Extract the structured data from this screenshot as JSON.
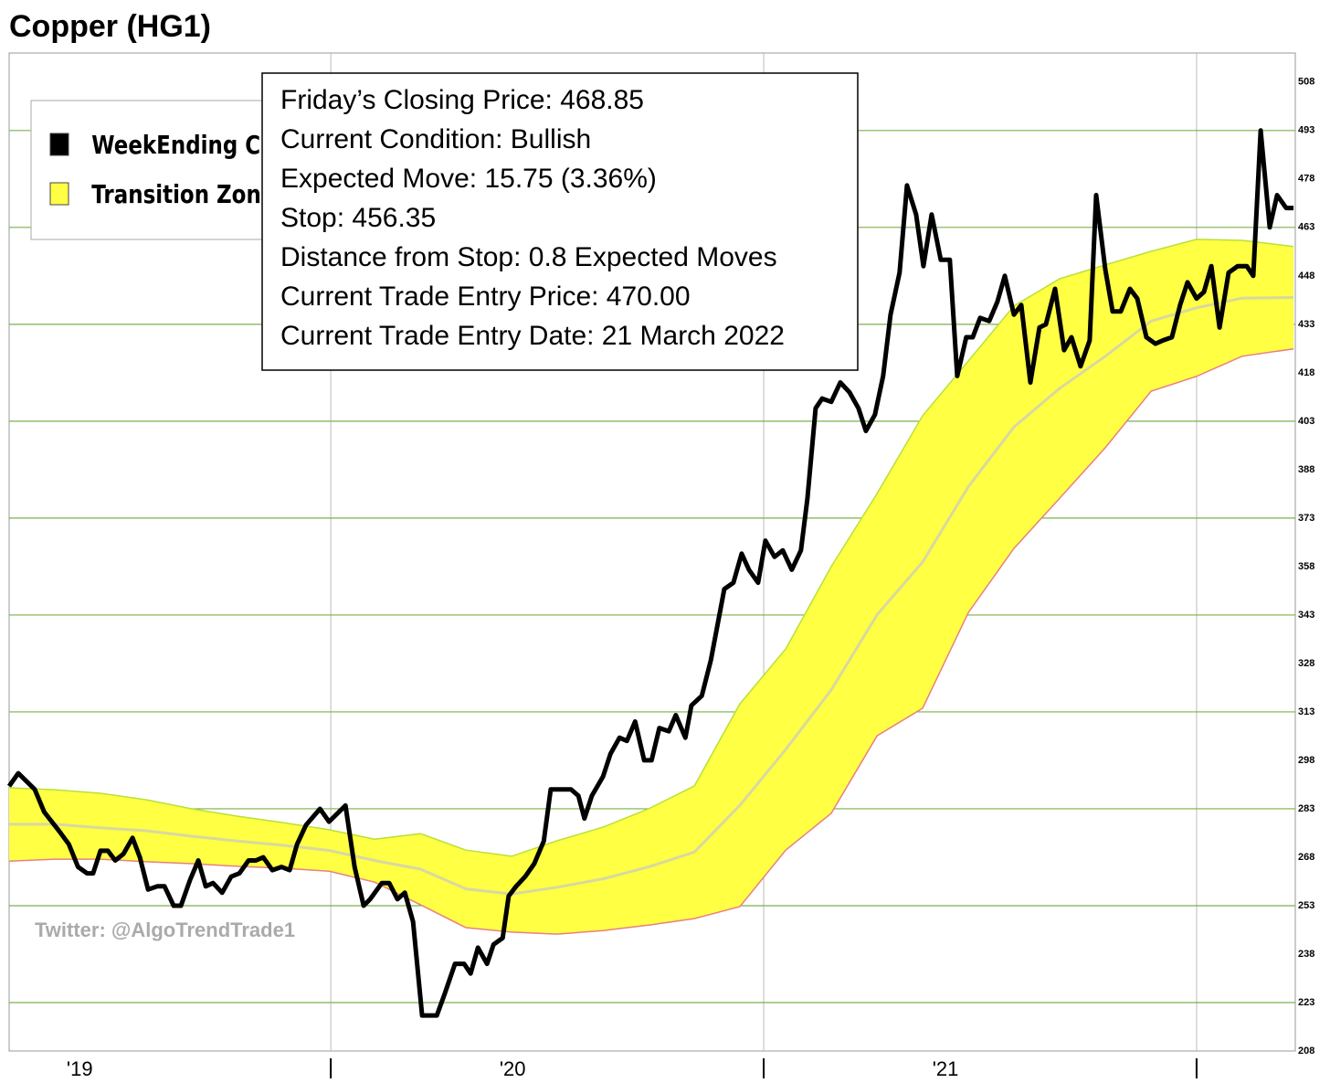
{
  "chart_data": {
    "type": "line",
    "title": "Copper (HG1)",
    "watermark": "Twitter: @AlgoTrendTrade1",
    "info": [
      "Friday’s Closing Price: 468.85",
      "Current Condition: Bullish",
      "Expected Move: 15.75 (3.36%)",
      "Stop: 456.35",
      "Distance from Stop: 0.8 Expected Moves",
      "Current Trade Entry Price: 470.00",
      "Current Trade Entry Date: 21 March 2022"
    ],
    "xlim": [
      2019.257,
      2022.228
    ],
    "xticks": [
      2020,
      2021,
      2022
    ],
    "xlabels": [
      {
        "value": 2019,
        "label": "'19"
      },
      {
        "value": 2020,
        "label": "'20"
      },
      {
        "value": 2021,
        "label": "'21"
      }
    ],
    "ylim": [
      208,
      517
    ],
    "yticks": [
      208,
      223,
      238,
      253,
      268,
      283,
      298,
      313,
      328,
      343,
      358,
      373,
      388,
      403,
      418,
      433,
      448,
      463,
      478,
      493,
      508
    ],
    "grid": true,
    "legend": "upper left",
    "x": [
      2019.257,
      2019.278,
      2019.316,
      2019.338,
      2019.373,
      2019.395,
      2019.416,
      2019.437,
      2019.451,
      2019.468,
      2019.485,
      2019.502,
      2019.521,
      2019.542,
      2019.559,
      2019.578,
      2019.599,
      2019.616,
      2019.637,
      2019.654,
      2019.675,
      2019.694,
      2019.711,
      2019.728,
      2019.749,
      2019.77,
      2019.789,
      2019.81,
      2019.827,
      2019.844,
      2019.865,
      2019.886,
      2019.905,
      2019.922,
      2019.943,
      2019.975,
      2019.996,
      2020.034,
      2020.055,
      2020.076,
      2020.091,
      2020.118,
      2020.135,
      2020.154,
      2020.171,
      2020.19,
      2020.211,
      2020.228,
      2020.245,
      2020.264,
      2020.287,
      2020.308,
      2020.323,
      2020.34,
      2020.361,
      2020.376,
      2020.397,
      2020.411,
      2020.428,
      2020.449,
      2020.47,
      2020.492,
      2020.508,
      2020.534,
      2020.555,
      2020.572,
      2020.586,
      2020.603,
      2020.629,
      2020.646,
      2020.667,
      2020.684,
      2020.703,
      2020.724,
      2020.741,
      2020.759,
      2020.781,
      2020.797,
      2020.819,
      2020.833,
      2020.857,
      2020.878,
      2020.909,
      2020.93,
      2020.949,
      2020.966,
      2020.987,
      2021.004,
      2021.025,
      2021.044,
      2021.065,
      2021.086,
      2021.101,
      2021.12,
      2021.135,
      2021.156,
      2021.177,
      2021.198,
      2021.219,
      2021.236,
      2021.257,
      2021.276,
      2021.293,
      2021.314,
      2021.331,
      2021.352,
      2021.369,
      2021.388,
      2021.409,
      2021.43,
      2021.447,
      2021.468,
      2021.483,
      2021.5,
      2021.521,
      2021.54,
      2021.557,
      2021.578,
      2021.595,
      2021.616,
      2021.637,
      2021.652,
      2021.673,
      2021.694,
      2021.711,
      2021.732,
      2021.753,
      2021.768,
      2021.789,
      2021.806,
      2021.825,
      2021.846,
      2021.863,
      2021.884,
      2021.905,
      2021.922,
      2021.943,
      2021.962,
      2021.979,
      2022.0,
      2022.017,
      2022.034,
      2022.053,
      2022.074,
      2022.095,
      2022.116,
      2022.131,
      2022.148,
      2022.169,
      2022.186,
      2022.207,
      2022.224
    ],
    "series": [
      {
        "name": "WeekEnding Close",
        "color": "#000000",
        "values": [
          290,
          294,
          289,
          282,
          276,
          272,
          265,
          263,
          263,
          270,
          270,
          267,
          269,
          274,
          268,
          258,
          259,
          259,
          253,
          253,
          261,
          267,
          259,
          260,
          257,
          262,
          263,
          267,
          267,
          268,
          264,
          265,
          264,
          272,
          278,
          283,
          279,
          284,
          265,
          253,
          255,
          260,
          260,
          255,
          257,
          248,
          219,
          219,
          219,
          226,
          235,
          235,
          232,
          240,
          235,
          241,
          243,
          256,
          259,
          262,
          266,
          273,
          289,
          289,
          289,
          287,
          280,
          287,
          293,
          300,
          305,
          304,
          310,
          298,
          298,
          308,
          307,
          312,
          305,
          315,
          318,
          329,
          351,
          353,
          362,
          357,
          353,
          366,
          361,
          363,
          357,
          363,
          379,
          407,
          410,
          409,
          415,
          412,
          407,
          400,
          405,
          417,
          436,
          449,
          476,
          467,
          451,
          467,
          453,
          453,
          417,
          429,
          429,
          435,
          434,
          440,
          448,
          436,
          439,
          415,
          432,
          433,
          444,
          425,
          429,
          420,
          428,
          473,
          450,
          437,
          437,
          444,
          441,
          429,
          427,
          428,
          429,
          439,
          446,
          441,
          443,
          451,
          432,
          449,
          451,
          451,
          448,
          493,
          463,
          473,
          469,
          469
        ]
      },
      {
        "name": "Transition Zone",
        "color": "#ffff44",
        "type": "band",
        "x": [
          2019.257,
          2019.363,
          2019.468,
          2019.574,
          2019.679,
          2019.785,
          2019.89,
          2019.996,
          2020.101,
          2020.207,
          2020.312,
          2020.418,
          2020.523,
          2020.629,
          2020.734,
          2020.84,
          2020.945,
          2021.051,
          2021.156,
          2021.262,
          2021.367,
          2021.473,
          2021.578,
          2021.684,
          2021.789,
          2021.895,
          2022.0,
          2022.105,
          2022.224
        ],
        "upper": [
          289.5,
          288.9,
          287.8,
          285.8,
          283,
          280.7,
          278.7,
          276.5,
          273.6,
          275.3,
          270.2,
          268.3,
          273.1,
          277.3,
          283,
          290.1,
          315.5,
          332.5,
          358,
          380.6,
          404.7,
          421.7,
          438.7,
          447.1,
          451.4,
          455.6,
          459.3,
          459,
          457.1
        ],
        "middle": [
          278.2,
          278.2,
          277.1,
          276.2,
          274.5,
          273,
          271.7,
          270.1,
          267,
          264.3,
          258.2,
          256.6,
          258.7,
          261.3,
          265,
          269.6,
          284.1,
          301.4,
          319.8,
          343.1,
          359.4,
          382.8,
          401.2,
          413.2,
          423.1,
          434,
          438.1,
          441.1,
          441.3
        ],
        "lower": [
          266.8,
          267.4,
          267.4,
          266.6,
          266,
          265.2,
          264.6,
          263.7,
          260.3,
          253.3,
          246.2,
          244.8,
          244.2,
          245.3,
          247,
          249,
          252.7,
          270.2,
          281.6,
          305.6,
          314.1,
          343.8,
          363.6,
          379.2,
          394.8,
          412.3,
          416.9,
          423.1,
          425.4
        ]
      }
    ]
  }
}
